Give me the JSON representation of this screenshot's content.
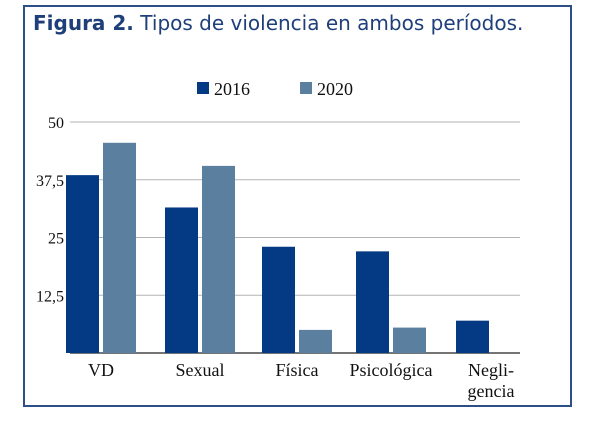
{
  "figure": {
    "label": "Figura 2.",
    "title": "Tipos de violencia en ambos períodos."
  },
  "chart_data": {
    "type": "bar",
    "categories": [
      "VD",
      "Sexual",
      "Física",
      "Psicológica",
      "Negli-\ngencia"
    ],
    "series": [
      {
        "name": "2016",
        "color": "#043a83",
        "values": [
          38.5,
          31.5,
          23,
          22,
          7
        ]
      },
      {
        "name": "2020",
        "color": "#5a7f9f",
        "values": [
          45.5,
          40.5,
          5,
          5.5,
          null
        ]
      }
    ],
    "yticks": [
      "50",
      "37,5",
      "25",
      "12,5"
    ],
    "ylim": [
      0,
      50
    ],
    "grid": true,
    "legend_position": "top"
  }
}
